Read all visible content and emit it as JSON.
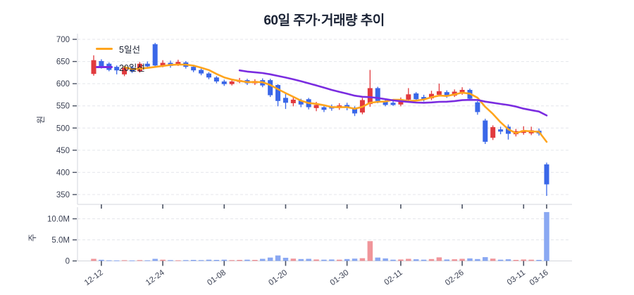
{
  "title": "60일 주가·거래량 추이",
  "legend": {
    "ma5_label": "5일선",
    "ma20_label": "20일선"
  },
  "price_axis": {
    "label": "원",
    "ticks": [
      700,
      650,
      600,
      550,
      500,
      450,
      400,
      350
    ]
  },
  "volume_axis": {
    "label": "주",
    "ticks": [
      {
        "value": 10,
        "label": "10.0M"
      },
      {
        "value": 5,
        "label": "5.0M"
      },
      {
        "value": 0,
        "label": "0"
      }
    ]
  },
  "colors": {
    "up": "#e13a3e",
    "down": "#3a67e8",
    "volume_up": "#f0959a",
    "volume_down": "#8aa8f2",
    "ma5": "#ffa51e",
    "ma20": "#7a2ce0",
    "grid": "#e4e6eb",
    "axis_line": "#d3d6dc",
    "tick_text": "#3c4254",
    "tick_mark": "#4a5162"
  },
  "chart_data": {
    "type": "candlestick+volume",
    "title": "60일 주가·거래량 추이",
    "price_unit": "원",
    "volume_unit": "주",
    "price_range": [
      350,
      700
    ],
    "volume_range_m": [
      0,
      12
    ],
    "grid": "dashed-horizontal",
    "legend_position": "top-left-inside",
    "ma_windows": {
      "ma5": 5,
      "ma20": 20
    },
    "x_tick_indices": [
      1,
      9,
      17,
      25,
      33,
      40,
      48,
      56,
      59
    ],
    "dates": [
      "12-11",
      "12-12",
      "12-13",
      "12-16",
      "12-17",
      "12-18",
      "12-19",
      "12-20",
      "12-23",
      "12-24",
      "12-26",
      "12-27",
      "12-30",
      "01-02",
      "01-03",
      "01-06",
      "01-07",
      "01-08",
      "01-09",
      "01-10",
      "01-13",
      "01-14",
      "01-15",
      "01-16",
      "01-17",
      "01-20",
      "01-21",
      "01-22",
      "01-23",
      "01-24",
      "01-25",
      "01-28",
      "01-29",
      "01-30",
      "01-31",
      "02-03",
      "02-04",
      "02-05",
      "02-06",
      "02-07",
      "02-11",
      "02-12",
      "02-13",
      "02-14",
      "02-17",
      "02-18",
      "02-19",
      "02-20",
      "02-26",
      "02-27",
      "02-28",
      "03-04",
      "03-05",
      "03-06",
      "03-07",
      "03-10",
      "03-11",
      "03-12",
      "03-13",
      "03-16"
    ],
    "ohlc": [
      [
        622,
        664,
        618,
        653
      ],
      [
        651,
        655,
        634,
        638
      ],
      [
        645,
        648,
        628,
        631
      ],
      [
        638,
        641,
        621,
        630
      ],
      [
        621,
        640,
        617,
        636
      ],
      [
        636,
        640,
        624,
        628
      ],
      [
        628,
        649,
        625,
        645
      ],
      [
        645,
        650,
        635,
        639
      ],
      [
        689,
        692,
        638,
        641
      ],
      [
        641,
        653,
        637,
        647
      ],
      [
        647,
        652,
        636,
        640
      ],
      [
        643,
        654,
        640,
        649
      ],
      [
        648,
        651,
        634,
        638
      ],
      [
        638,
        641,
        626,
        630
      ],
      [
        631,
        634,
        619,
        623
      ],
      [
        623,
        626,
        610,
        614
      ],
      [
        614,
        617,
        601,
        605
      ],
      [
        605,
        609,
        595,
        599
      ],
      [
        599,
        609,
        596,
        605
      ],
      [
        604,
        613,
        601,
        608
      ],
      [
        608,
        611,
        597,
        601
      ],
      [
        601,
        610,
        597,
        606
      ],
      [
        608,
        612,
        592,
        596
      ],
      [
        608,
        611,
        570,
        574
      ],
      [
        597,
        599,
        549,
        561
      ],
      [
        568,
        580,
        543,
        557
      ],
      [
        556,
        570,
        549,
        564
      ],
      [
        562,
        566,
        547,
        553
      ],
      [
        565,
        568,
        542,
        547
      ],
      [
        545,
        559,
        538,
        552
      ],
      [
        547,
        551,
        536,
        541
      ],
      [
        549,
        553,
        539,
        544
      ],
      [
        545,
        556,
        541,
        551
      ],
      [
        552,
        557,
        540,
        548
      ],
      [
        546,
        549,
        527,
        533
      ],
      [
        535,
        568,
        531,
        563
      ],
      [
        554,
        631,
        548,
        590
      ],
      [
        590,
        593,
        556,
        561
      ],
      [
        561,
        566,
        549,
        552
      ],
      [
        557,
        562,
        550,
        552
      ],
      [
        553,
        569,
        549,
        564
      ],
      [
        564,
        590,
        561,
        576
      ],
      [
        578,
        581,
        561,
        565
      ],
      [
        570,
        575,
        560,
        565
      ],
      [
        567,
        584,
        563,
        577
      ],
      [
        575,
        600,
        572,
        583
      ],
      [
        581,
        585,
        568,
        571
      ],
      [
        573,
        587,
        570,
        582
      ],
      [
        578,
        592,
        575,
        586
      ],
      [
        586,
        589,
        562,
        566
      ],
      [
        558,
        561,
        530,
        536
      ],
      [
        517,
        521,
        464,
        469
      ],
      [
        478,
        506,
        473,
        502
      ],
      [
        497,
        503,
        486,
        492
      ],
      [
        503,
        508,
        474,
        487
      ],
      [
        486,
        498,
        481,
        493
      ],
      [
        489,
        504,
        485,
        495
      ],
      [
        488,
        503,
        484,
        495
      ],
      [
        494,
        499,
        483,
        488
      ],
      [
        418,
        422,
        347,
        373
      ]
    ],
    "volumes_m": [
      0.5,
      0.28,
      0.15,
      0.12,
      0.18,
      0.12,
      0.2,
      0.15,
      0.5,
      0.3,
      0.2,
      0.15,
      0.2,
      0.25,
      0.2,
      0.3,
      0.25,
      0.3,
      0.2,
      0.25,
      0.3,
      0.25,
      0.5,
      0.8,
      1.3,
      0.75,
      0.55,
      0.45,
      0.5,
      0.35,
      0.3,
      0.35,
      0.3,
      0.45,
      0.55,
      0.65,
      4.7,
      0.8,
      0.6,
      0.3,
      0.35,
      0.5,
      0.4,
      0.3,
      0.45,
      0.85,
      0.35,
      0.4,
      0.5,
      0.6,
      0.45,
      0.9,
      0.55,
      0.3,
      0.4,
      0.25,
      0.35,
      0.3,
      0.25,
      11.6
    ]
  }
}
